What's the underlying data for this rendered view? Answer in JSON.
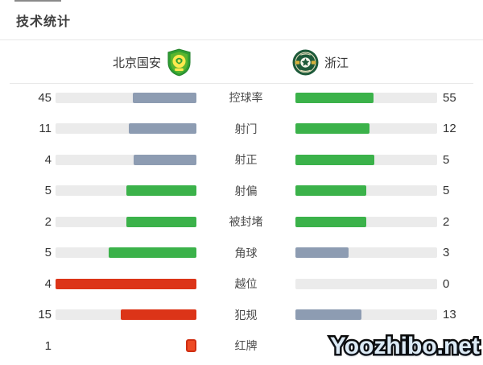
{
  "page": {
    "title": "技术统计",
    "watermark": "Yoozhibo.net"
  },
  "teams": {
    "home": {
      "name": "北京国安"
    },
    "away": {
      "name": "浙江"
    }
  },
  "colors": {
    "green": "#3bb24a",
    "blue": "#8d9cb2",
    "red": "#dc3418",
    "track": "#ebebeb",
    "card": "#ee4a24"
  },
  "stats": [
    {
      "label": "控球率",
      "home": {
        "value": "45",
        "pct": 45,
        "color": "blue",
        "type": "bar"
      },
      "away": {
        "value": "55",
        "pct": 55,
        "color": "green",
        "type": "bar"
      }
    },
    {
      "label": "射门",
      "home": {
        "value": "11",
        "pct": 47.8,
        "color": "blue",
        "type": "bar"
      },
      "away": {
        "value": "12",
        "pct": 52.2,
        "color": "green",
        "type": "bar"
      }
    },
    {
      "label": "射正",
      "home": {
        "value": "4",
        "pct": 44.4,
        "color": "blue",
        "type": "bar"
      },
      "away": {
        "value": "5",
        "pct": 55.6,
        "color": "green",
        "type": "bar"
      }
    },
    {
      "label": "射偏",
      "home": {
        "value": "5",
        "pct": 50,
        "color": "green",
        "type": "bar"
      },
      "away": {
        "value": "5",
        "pct": 50,
        "color": "green",
        "type": "bar"
      }
    },
    {
      "label": "被封堵",
      "home": {
        "value": "2",
        "pct": 50,
        "color": "green",
        "type": "bar"
      },
      "away": {
        "value": "2",
        "pct": 50,
        "color": "green",
        "type": "bar"
      }
    },
    {
      "label": "角球",
      "home": {
        "value": "5",
        "pct": 62.5,
        "color": "green",
        "type": "bar"
      },
      "away": {
        "value": "3",
        "pct": 37.5,
        "color": "blue",
        "type": "bar"
      }
    },
    {
      "label": "越位",
      "home": {
        "value": "4",
        "pct": 100,
        "color": "red",
        "type": "bar"
      },
      "away": {
        "value": "0",
        "pct": 0,
        "color": "blue",
        "type": "bar"
      }
    },
    {
      "label": "犯规",
      "home": {
        "value": "15",
        "pct": 53.6,
        "color": "red",
        "type": "bar"
      },
      "away": {
        "value": "13",
        "pct": 46.4,
        "color": "blue",
        "type": "bar"
      }
    },
    {
      "label": "红牌",
      "home": {
        "value": "1",
        "cards": 1,
        "type": "card"
      },
      "away": {
        "value": "0",
        "cards": 0,
        "type": "card"
      }
    }
  ]
}
